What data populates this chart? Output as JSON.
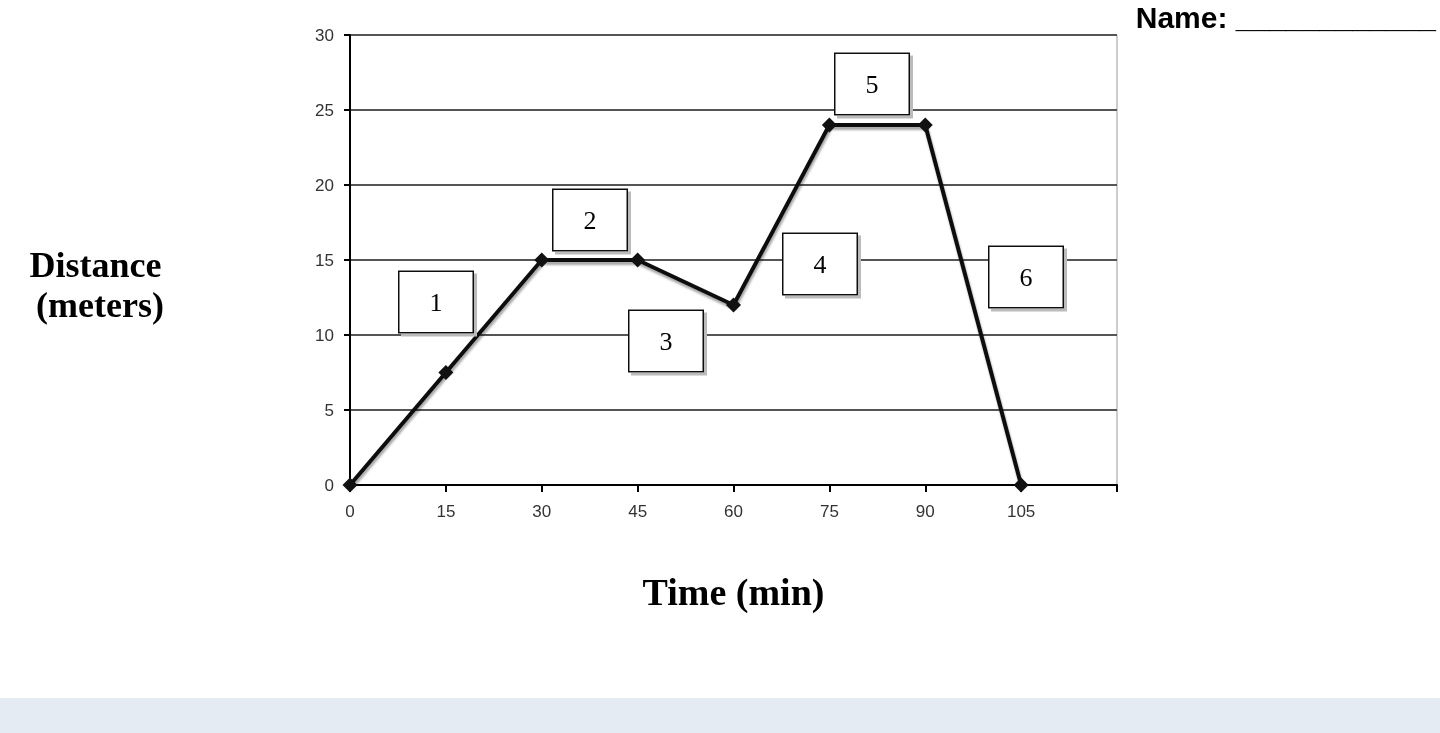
{
  "chart_data": {
    "type": "line",
    "xlabel": "Time (min)",
    "ylabel": "Distance (meters)",
    "x": [
      0,
      15,
      30,
      45,
      60,
      75,
      90,
      105
    ],
    "values": [
      0,
      7.5,
      15,
      15,
      12,
      24,
      24,
      0
    ],
    "color": "#111111",
    "xlim": [
      0,
      120
    ],
    "xticks": [
      0,
      15,
      30,
      45,
      60,
      75,
      90,
      105,
      {
        "value": 120,
        "label": null
      }
    ],
    "ylim": [
      0,
      30
    ],
    "yticks": [
      0,
      5,
      10,
      15,
      20,
      25,
      30
    ],
    "grid": "y",
    "marker": "diamond",
    "line_style": "solid",
    "annotations": [
      "Name: ____________",
      "1",
      "2",
      "3",
      "4",
      "5",
      "6"
    ]
  }
}
